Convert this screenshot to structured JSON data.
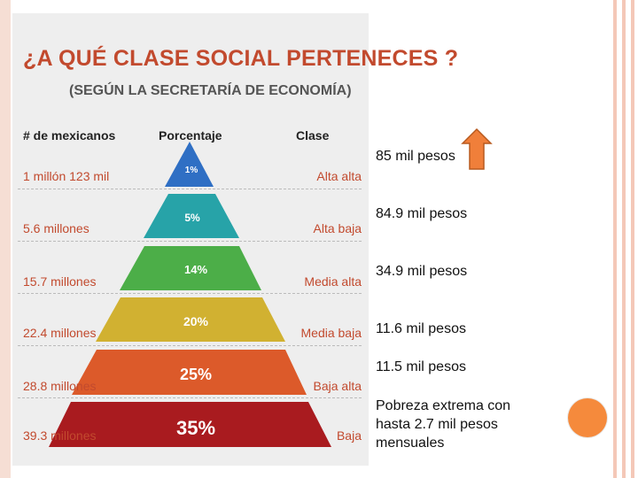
{
  "infographic": {
    "title": "¿A QUÉ CLASE SOCIAL PERTENECES ?",
    "subtitle": "(SEGÚN LA SECRETARÍA DE ECONOMÍA)",
    "headers": {
      "count": "# de mexicanos",
      "percent": "Porcentaje",
      "class": "Clase"
    },
    "rows": [
      {
        "count": "1 millón 123 mil",
        "percent": "1%",
        "class": "Alta alta",
        "color": "#2f6fc4"
      },
      {
        "count": "5.6 millones",
        "percent": "5%",
        "class": "Alta baja",
        "color": "#27a3a8"
      },
      {
        "count": "15.7 millones",
        "percent": "14%",
        "class": "Media alta",
        "color": "#4cae48"
      },
      {
        "count": "22.4 millones",
        "percent": "20%",
        "class": "Media baja",
        "color": "#d1b131"
      },
      {
        "count": "28.8 millones",
        "percent": "25%",
        "class": "Baja alta",
        "color": "#dc5a2a"
      },
      {
        "count": "39.3 millones",
        "percent": "35%",
        "class": "Baja",
        "color": "#a91b1f"
      }
    ]
  },
  "income": [
    "85 mil pesos",
    "84.9 mil pesos",
    "34.9 mil pesos",
    "11.6 mil pesos",
    "11.5 mil pesos",
    "Pobreza extrema con hasta 2.7 mil pesos mensuales"
  ],
  "decor": {
    "arrow_icon": "up-arrow-icon",
    "arrow_color": "#f07f3a",
    "circle_color": "#f58a3c"
  }
}
